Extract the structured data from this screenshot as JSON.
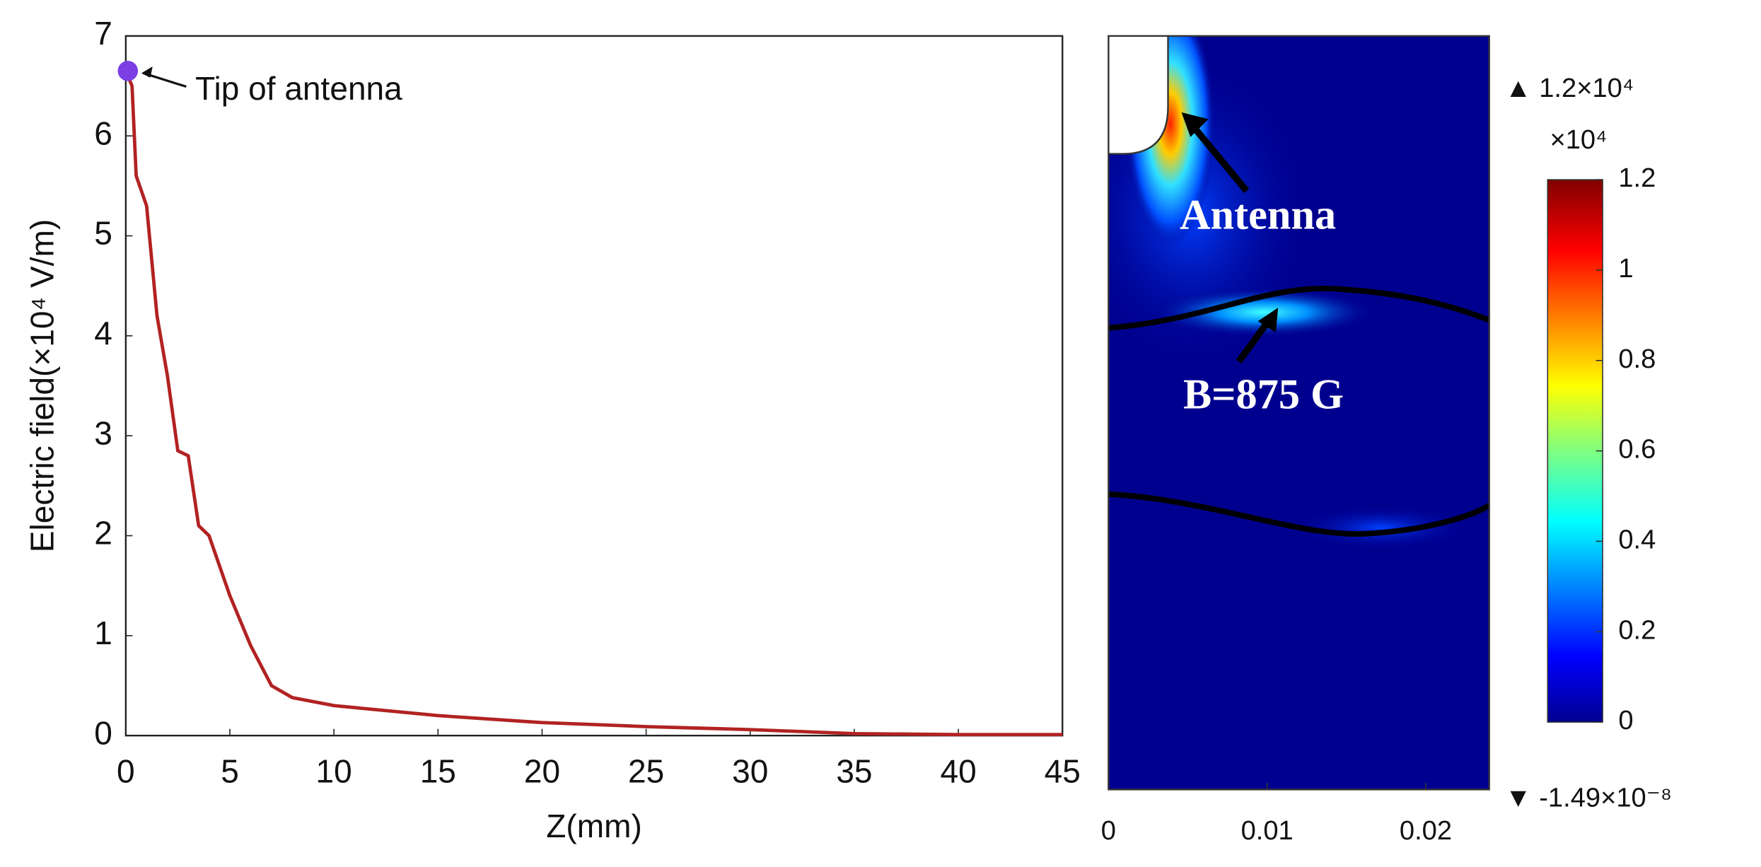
{
  "chart_data": [
    {
      "type": "line",
      "xlabel": "Z(mm)",
      "ylabel": "Electric field(×10⁴ V/m)",
      "x": [
        0,
        0.3,
        0.5,
        1,
        1.5,
        2,
        2.5,
        3,
        3.5,
        4,
        5,
        6,
        7,
        8,
        10,
        15,
        20,
        25,
        30,
        35,
        40,
        45
      ],
      "series": [
        {
          "color": "#b22222",
          "values": [
            6.65,
            6.5,
            5.6,
            5.3,
            4.2,
            3.6,
            2.85,
            2.8,
            2.1,
            2.0,
            1.4,
            0.9,
            0.5,
            0.38,
            0.3,
            0.2,
            0.13,
            0.09,
            0.06,
            0.02,
            0.01,
            0.01
          ]
        }
      ],
      "annotation": {
        "text": "Tip of antenna",
        "x": 0.1,
        "y": 6.65,
        "color": "#7b3fe4"
      },
      "xlim": [
        0,
        45
      ],
      "xticks": [
        0,
        5,
        10,
        15,
        20,
        25,
        30,
        35,
        40,
        45
      ],
      "ylim": [
        0,
        7
      ],
      "yticks": [
        0,
        1,
        2,
        3,
        4,
        5,
        6,
        7
      ]
    },
    {
      "type": "heatmap",
      "xlim": [
        0,
        0.024
      ],
      "xticks": [
        0,
        0.01,
        0.02
      ],
      "annotations": [
        "Antenna",
        "B=875 G"
      ],
      "colorbar": {
        "clim": [
          0,
          1.2
        ],
        "ticks": [
          0,
          0.2,
          0.4,
          0.6,
          0.8,
          1,
          1.2
        ],
        "exponent_label": "×10⁴",
        "max_label": "▲ 1.2×10⁴",
        "min_label": "▼ -1.49×10⁻⁸"
      }
    }
  ]
}
